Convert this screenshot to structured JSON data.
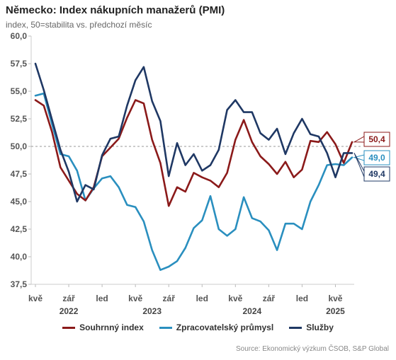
{
  "header": {
    "title": "Německo: Index nákupních manažerů (PMI)",
    "subtitle": "index, 50=stabilita vs. předchozí měsíc"
  },
  "source": "Source: Ekonomický výzkum ČSOB, S&P Global",
  "chart_data": {
    "type": "line",
    "title": "Německo: Index nákupních manažerů (PMI)",
    "subtitle": "index, 50=stabilita vs. předchozí měsíc",
    "ylim": [
      37.5,
      60.0
    ],
    "yticks": [
      "60,0",
      "57,5",
      "55,0",
      "52,5",
      "50,0",
      "47,5",
      "45,0",
      "42,5",
      "40,0",
      "37,5"
    ],
    "ytick_values": [
      60,
      57.5,
      55,
      52.5,
      50,
      47.5,
      45,
      42.5,
      40,
      37.5
    ],
    "reference_line": 50,
    "x_start": "2022-05",
    "x_ticks": [
      {
        "index": 0,
        "label": "kvě"
      },
      {
        "index": 4,
        "label": "zář"
      },
      {
        "index": 8,
        "label": "led"
      },
      {
        "index": 12,
        "label": "kvě"
      },
      {
        "index": 16,
        "label": "zář"
      },
      {
        "index": 20,
        "label": "led"
      },
      {
        "index": 24,
        "label": "kvě"
      },
      {
        "index": 28,
        "label": "zář"
      },
      {
        "index": 32,
        "label": "led"
      },
      {
        "index": 36,
        "label": "kvě"
      }
    ],
    "year_labels": [
      {
        "index": 4,
        "label": "2022"
      },
      {
        "index": 14,
        "label": "2023"
      },
      {
        "index": 26,
        "label": "2024"
      },
      {
        "index": 36,
        "label": "2025"
      }
    ],
    "grid": false,
    "legend_position": "bottom",
    "series": [
      {
        "name": "Souhrnný index",
        "color": "#8B1A1A",
        "end_label": "50,4",
        "values": [
          54.2,
          53.7,
          51.3,
          48.1,
          46.9,
          45.7,
          45.1,
          46.3,
          49.1,
          49.9,
          50.7,
          52.6,
          54.2,
          53.9,
          50.6,
          48.5,
          44.6,
          46.3,
          45.9,
          47.6,
          47.2,
          46.9,
          46.3,
          47.6,
          50.6,
          52.4,
          50.4,
          49.1,
          48.4,
          47.5,
          48.6,
          47.2,
          47.9,
          50.5,
          50.4,
          51.3,
          50.2,
          48.5,
          50.4
        ]
      },
      {
        "name": "Zpracovatelský průmysl",
        "color": "#2A8FBF",
        "end_label": "49,0",
        "values": [
          54.6,
          54.8,
          52.0,
          49.3,
          49.1,
          47.8,
          45.1,
          46.2,
          47.1,
          47.3,
          46.3,
          44.7,
          44.5,
          43.2,
          40.6,
          38.8,
          39.1,
          39.6,
          40.8,
          42.6,
          43.3,
          45.5,
          42.5,
          41.9,
          42.5,
          45.4,
          43.5,
          43.2,
          42.4,
          40.6,
          43.0,
          43.0,
          42.5,
          45.0,
          46.5,
          48.3,
          48.4,
          48.3,
          49.0
        ]
      },
      {
        "name": "Služby",
        "color": "#1F3864",
        "end_label": "49,4",
        "values": [
          57.5,
          55.1,
          52.4,
          49.7,
          47.7,
          45.0,
          46.5,
          46.1,
          49.2,
          50.7,
          50.9,
          53.7,
          56.0,
          57.2,
          54.1,
          52.3,
          47.3,
          50.3,
          48.3,
          49.3,
          47.8,
          48.3,
          49.7,
          53.3,
          54.2,
          53.1,
          53.1,
          51.2,
          50.6,
          51.6,
          49.3,
          51.2,
          52.5,
          51.1,
          50.9,
          49.4,
          47.2,
          49.4,
          49.4
        ]
      }
    ]
  }
}
